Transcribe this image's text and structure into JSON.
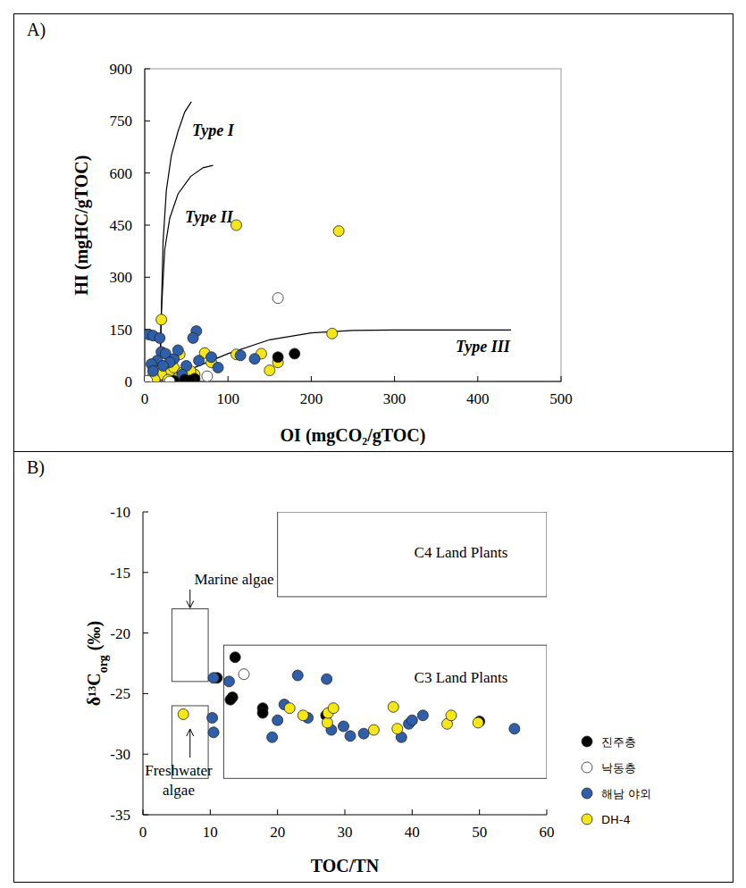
{
  "chart_data": [
    {
      "type": "scatter",
      "title": "A)",
      "x_label": "OI (mgCO₂/gTOC)",
      "y_label": "HI (mgHC/gTOC)",
      "xlim": [
        0,
        500
      ],
      "xticks": [
        0,
        100,
        200,
        300,
        400,
        500
      ],
      "ylim": [
        0,
        900
      ],
      "yticks": [
        0,
        150,
        300,
        450,
        600,
        750,
        900
      ],
      "series": [
        {
          "color": "#f5e61a",
          "marker": "circle",
          "x": [
            110,
            233,
            20,
            225,
            72,
            110,
            140,
            42,
            80,
            160,
            150,
            25,
            30,
            15,
            35,
            45,
            20,
            10,
            50,
            40,
            28,
            12,
            60,
            55
          ],
          "values": [
            450,
            433,
            178,
            138,
            82,
            78,
            80,
            78,
            55,
            55,
            32,
            35,
            30,
            28,
            40,
            25,
            20,
            15,
            10,
            10,
            5,
            5,
            20,
            30
          ]
        },
        {
          "color": "#2e5fa8",
          "marker": "circle",
          "x": [
            5,
            10,
            18,
            62,
            58,
            20,
            25,
            35,
            15,
            8,
            40,
            50,
            80,
            88,
            115,
            132,
            30,
            10,
            22,
            45,
            65
          ],
          "values": [
            135,
            132,
            125,
            145,
            125,
            85,
            80,
            65,
            60,
            50,
            90,
            45,
            70,
            40,
            75,
            65,
            55,
            30,
            45,
            20,
            60
          ]
        },
        {
          "color": "#000000",
          "marker": "circle",
          "x": [
            180,
            160,
            60,
            48,
            55,
            35
          ],
          "values": [
            80,
            70,
            8,
            5,
            3,
            2
          ]
        },
        {
          "color": "#ffffff",
          "marker": "circle",
          "x": [
            160,
            75,
            3,
            30
          ],
          "values": [
            240,
            15,
            2,
            0
          ]
        },
        {
          "type": "line",
          "name": "Type I",
          "color": "#000000",
          "x": [
            18,
            20,
            22,
            26,
            32,
            40,
            48,
            56
          ],
          "values": [
            0,
            200,
            400,
            550,
            650,
            720,
            775,
            805
          ]
        },
        {
          "type": "line",
          "name": "Type II",
          "color": "#000000",
          "x": [
            18,
            20,
            24,
            30,
            40,
            55,
            70,
            82
          ],
          "values": [
            0,
            200,
            380,
            470,
            540,
            590,
            615,
            622
          ]
        },
        {
          "type": "line",
          "name": "Type III",
          "color": "#000000",
          "x": [
            10,
            30,
            60,
            100,
            150,
            200,
            250,
            300,
            440
          ],
          "values": [
            0,
            10,
            40,
            80,
            120,
            140,
            147,
            148,
            148
          ]
        }
      ]
    },
    {
      "type": "scatter",
      "title": "B)",
      "x_label": "TOC/TN",
      "y_label": "δ¹³Corg (‰)",
      "xlim": [
        0,
        60
      ],
      "xticks": [
        0,
        10,
        20,
        30,
        40,
        50,
        60
      ],
      "ylim": [
        -35,
        -10
      ],
      "yticks": [
        -35,
        -30,
        -25,
        -20,
        -15,
        -10
      ],
      "legend": "lower right",
      "regions": [
        {
          "label": "C4 Land Plants",
          "x": [
            20,
            60
          ],
          "y": [
            -17,
            -10
          ]
        },
        {
          "label": "C3 Land Plants",
          "x": [
            12,
            60
          ],
          "y": [
            -32,
            -21
          ]
        },
        {
          "label": "Marine algae",
          "x": [
            4.3,
            9.7
          ],
          "y": [
            -24,
            -18
          ]
        },
        {
          "label": "Freshwater algae",
          "x": [
            4.3,
            9.7
          ],
          "y": [
            -32,
            -26
          ]
        }
      ],
      "series": [
        {
          "name": "진주층",
          "color": "#000000",
          "marker": "circle",
          "x": [
            13.7,
            13.3,
            13,
            17.8,
            17.8,
            27.2,
            50,
            11
          ],
          "values": [
            -22,
            -25.3,
            -25.5,
            -26.2,
            -26.6,
            -26.8,
            -27.3,
            -23.7
          ]
        },
        {
          "name": "낙동층",
          "color": "#ffffff",
          "marker": "circle",
          "x": [
            15
          ],
          "values": [
            -23.4
          ]
        },
        {
          "name": "해남 야외",
          "color": "#2e5fa8",
          "marker": "circle",
          "x": [
            10.5,
            10.3,
            10.5,
            12.8,
            19.2,
            20,
            21,
            23,
            24.5,
            27.3,
            28,
            29.8,
            30.8,
            32.8,
            38.4,
            39.5,
            40,
            41.6,
            55.2
          ],
          "values": [
            -23.7,
            -27,
            -28.2,
            -24,
            -28.6,
            -27.2,
            -25.9,
            -23.5,
            -27,
            -23.8,
            -28,
            -27.7,
            -28.5,
            -28.3,
            -28.6,
            -27.5,
            -27.2,
            -26.8,
            -27.9
          ]
        },
        {
          "name": "DH-4",
          "color": "#f5e61a",
          "marker": "circle",
          "x": [
            6,
            21.8,
            23.8,
            27.4,
            27.5,
            28.3,
            34.3,
            37.2,
            37.8,
            45.2,
            45.8,
            49.8
          ],
          "values": [
            -26.7,
            -26.2,
            -26.8,
            -27.4,
            -26.6,
            -26.2,
            -28,
            -26.1,
            -27.9,
            -27.5,
            -26.8,
            -27.4
          ]
        }
      ]
    }
  ]
}
